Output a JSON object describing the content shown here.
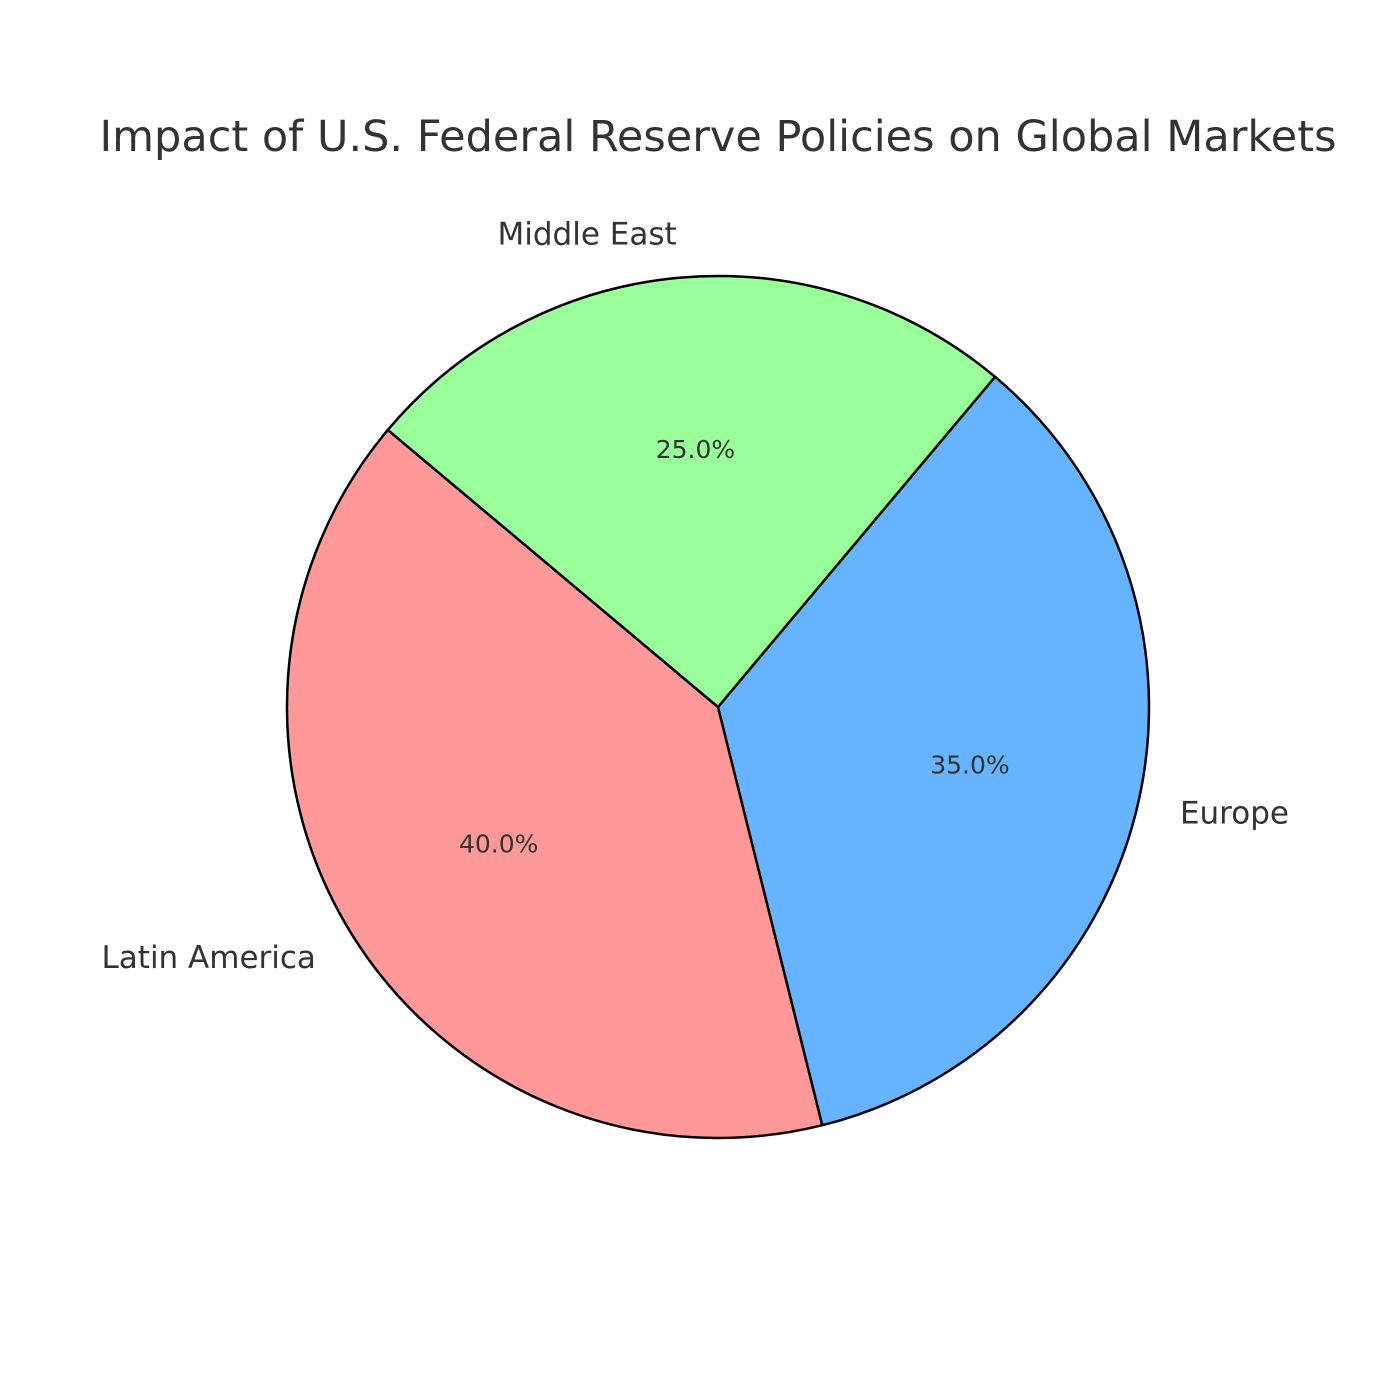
{
  "chart_data": {
    "type": "pie",
    "title": "Impact of U.S. Federal Reserve Policies on Global Markets",
    "categories": [
      "Latin America",
      "Europe",
      "Middle East"
    ],
    "values": [
      40.0,
      35.0,
      25.0
    ],
    "percent_labels": [
      "40.0%",
      "35.0%",
      "25.0%"
    ],
    "colors": [
      "#ff9999",
      "#66b3ff",
      "#99ff99"
    ],
    "start_angle_deg": 140,
    "direction": "counterclockwise",
    "edge_color": "#000000"
  }
}
